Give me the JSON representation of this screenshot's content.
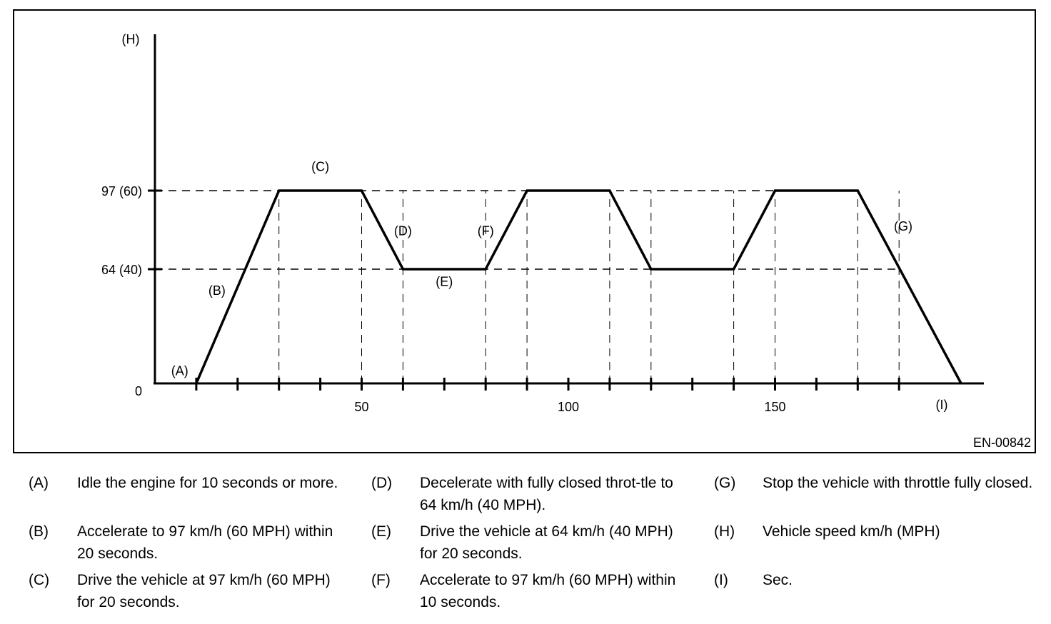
{
  "chart_data": {
    "type": "line",
    "title": "",
    "xlabel": "(I)",
    "ylabel": "(H)",
    "x_tick_labels": [
      "50",
      "100",
      "150"
    ],
    "x_ticks": [
      10,
      20,
      30,
      40,
      50,
      60,
      70,
      80,
      90,
      100,
      110,
      120,
      130,
      140,
      150,
      160,
      170,
      180
    ],
    "xlim": [
      0,
      200
    ],
    "y_tick_labels": [
      {
        "value": 0,
        "label": "0"
      },
      {
        "value": 64,
        "label": "64 (40)"
      },
      {
        "value": 97,
        "label": "97 (60)"
      }
    ],
    "ylim": [
      0,
      170
    ],
    "grid": false,
    "series": [
      {
        "name": "Vehicle speed",
        "x": [
          10,
          30,
          50,
          60,
          80,
          90,
          110,
          120,
          140,
          150,
          170,
          195
        ],
        "y": [
          0,
          97,
          97,
          64,
          64,
          97,
          97,
          64,
          64,
          97,
          97,
          0
        ]
      }
    ],
    "dashed_verticals": [
      30,
      50,
      60,
      80,
      90,
      110,
      120,
      140,
      150,
      170,
      180
    ],
    "dashed_horizontals": [
      {
        "y": 97,
        "to_x": 170
      },
      {
        "y": 64,
        "to_x": 180
      }
    ],
    "annotations": [
      {
        "label": "(A)",
        "x": 6,
        "y": 7
      },
      {
        "label": "(B)",
        "x": 15,
        "y": 52
      },
      {
        "label": "(C)",
        "x": 40,
        "y": 107
      },
      {
        "label": "(D)",
        "x": 60,
        "y": 80
      },
      {
        "label": "(F)",
        "x": 80,
        "y": 80
      },
      {
        "label": "(E)",
        "x": 70,
        "y": 57
      },
      {
        "label": "(G)",
        "x": 181,
        "y": 82
      }
    ]
  },
  "figure_code": "EN-00842",
  "legend": [
    {
      "key": "(A)",
      "text": "Idle the engine for 10 seconds or more."
    },
    {
      "key": "(B)",
      "text": "Accelerate to 97 km/h (60 MPH) within 20 seconds."
    },
    {
      "key": "(C)",
      "text": "Drive the vehicle at 97 km/h (60 MPH) for 20 seconds."
    },
    {
      "key": "(D)",
      "text": "Decelerate with fully closed throt-tle to 64 km/h (40 MPH)."
    },
    {
      "key": "(E)",
      "text": "Drive the vehicle at 64 km/h (40 MPH) for 20 seconds."
    },
    {
      "key": "(F)",
      "text": "Accelerate to 97 km/h (60 MPH) within 10 seconds."
    },
    {
      "key": "(G)",
      "text": "Stop the vehicle with throttle fully closed."
    },
    {
      "key": "(H)",
      "text": "Vehicle speed km/h (MPH)"
    },
    {
      "key": "(I)",
      "text": "Sec."
    }
  ]
}
